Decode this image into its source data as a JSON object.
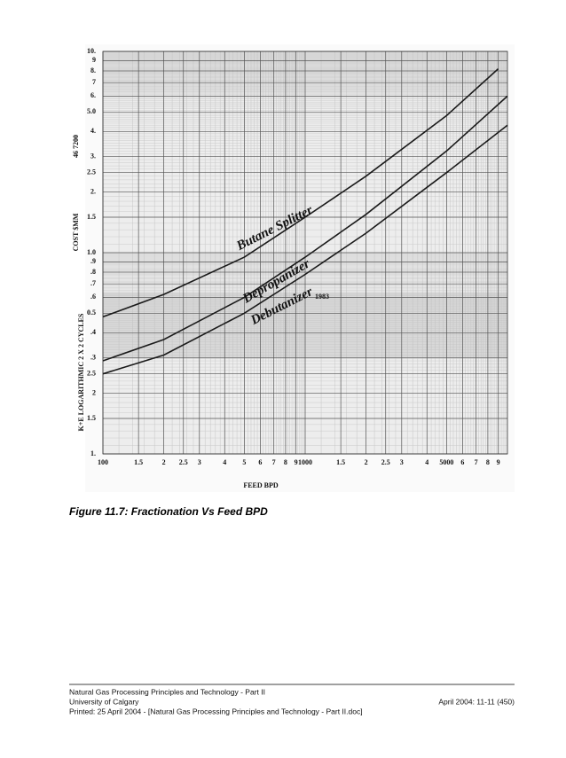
{
  "figure": {
    "chart_data": {
      "type": "line",
      "x_label": "FEED BPD",
      "y_label": "COST $MM",
      "side_notes": [
        "46 7200",
        "K+E LOGARITHMIC 2 X 2 CYCLES"
      ],
      "annotation": "1983",
      "xlog": true,
      "ylog": true,
      "grid": true,
      "xlim": [
        100,
        10000
      ],
      "ylim": [
        0.1,
        10
      ],
      "xticks": [
        100,
        {
          "value": 150,
          "label": "1.5"
        },
        {
          "value": 200,
          "label": "2"
        },
        {
          "value": 250,
          "label": "2.5"
        },
        {
          "value": 300,
          "label": "3"
        },
        {
          "value": 400,
          "label": "4"
        },
        {
          "value": 500,
          "label": "5"
        },
        {
          "value": 600,
          "label": "6"
        },
        {
          "value": 700,
          "label": "7"
        },
        {
          "value": 800,
          "label": "8"
        },
        {
          "value": 900,
          "label": "9"
        },
        1000,
        {
          "value": 1500,
          "label": "1.5"
        },
        {
          "value": 2000,
          "label": "2"
        },
        {
          "value": 2500,
          "label": "2.5"
        },
        {
          "value": 3000,
          "label": "3"
        },
        {
          "value": 4000,
          "label": "4"
        },
        5000,
        {
          "value": 6000,
          "label": "6"
        },
        {
          "value": 7000,
          "label": "7"
        },
        {
          "value": 8000,
          "label": "8"
        },
        {
          "value": 9000,
          "label": "9"
        }
      ],
      "yticks": [
        {
          "value": 10,
          "label": "10."
        },
        9,
        {
          "value": 8,
          "label": "8."
        },
        7,
        {
          "value": 6,
          "label": "6."
        },
        {
          "value": 5,
          "label": "5.0"
        },
        {
          "value": 4,
          "label": "4."
        },
        {
          "value": 3,
          "label": "3."
        },
        2.5,
        {
          "value": 2,
          "label": "2."
        },
        1.5,
        {
          "value": 1,
          "label": "1.0"
        },
        {
          "value": 0.9,
          "label": ".9"
        },
        {
          "value": 0.8,
          "label": ".8"
        },
        {
          "value": 0.7,
          "label": ".7"
        },
        {
          "value": 0.6,
          "label": ".6"
        },
        0.5,
        {
          "value": 0.4,
          "label": ".4"
        },
        {
          "value": 0.3,
          "label": ".3"
        },
        {
          "value": 0.25,
          "label": "2.5"
        },
        {
          "value": 0.2,
          "label": "2"
        },
        {
          "value": 0.15,
          "label": "1.5"
        },
        {
          "value": 0.1,
          "label": "1."
        }
      ],
      "series": [
        {
          "name": "Butane Splitter",
          "color": "#1a1a1a",
          "x": [
            100,
            200,
            500,
            1000,
            2000,
            5000,
            9000
          ],
          "values": [
            0.48,
            0.62,
            0.95,
            1.5,
            2.4,
            4.8,
            8.2
          ]
        },
        {
          "name": "Depropanizer",
          "color": "#1a1a1a",
          "x": [
            100,
            200,
            500,
            1000,
            2000,
            5000,
            10000
          ],
          "values": [
            0.29,
            0.37,
            0.6,
            0.95,
            1.55,
            3.2,
            6
          ]
        },
        {
          "name": "Debutanizer",
          "color": "#1a1a1a",
          "x": [
            100,
            200,
            500,
            1000,
            2000,
            5000,
            10000
          ],
          "values": [
            0.25,
            0.31,
            0.5,
            0.78,
            1.25,
            2.5,
            4.3
          ]
        }
      ]
    }
  },
  "caption": "Figure 11.7:  Fractionation Vs Feed BPD",
  "footer": {
    "lines": [
      "Natural Gas Processing Principles and Technology - Part II",
      "University of Calgary",
      "Printed: 25 April 2004 - [Natural Gas Processing Principles and Technology - Part II.doc]"
    ],
    "right": "April 2004: 11-11 (450)"
  }
}
